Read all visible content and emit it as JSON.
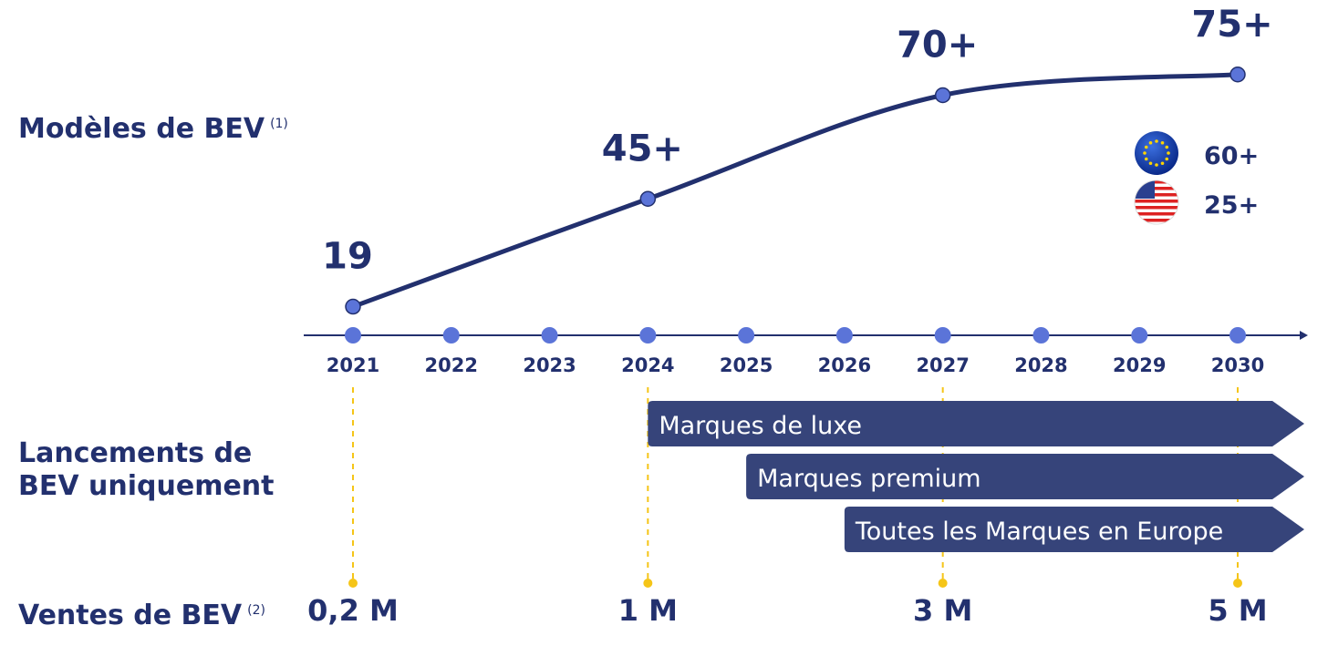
{
  "chart_data": {
    "type": "line",
    "row_labels": [
      "Modèles de BEV",
      "Lancements de BEV uniquement",
      "Ventes de BEV"
    ],
    "notes": [
      "(1)",
      "(2)"
    ],
    "x": [
      2021,
      2024,
      2027,
      2030
    ],
    "values": [
      19,
      45,
      70,
      75
    ],
    "value_labels": [
      "19",
      "45+",
      "70+",
      "75+"
    ],
    "color": "#22306e",
    "marker_color": "#5b74d8",
    "xlim": [
      2021,
      2030
    ],
    "xticks": [
      2021,
      2022,
      2023,
      2024,
      2025,
      2026,
      2027,
      2028,
      2029,
      2030
    ],
    "ylim": [
      0,
      100
    ],
    "regions": {
      "values": [
        60,
        25
      ],
      "value_labels": [
        "60+",
        "25+"
      ]
    },
    "launches": {
      "names": [
        "Marques de luxe",
        "Marques premium",
        "Toutes les Marques en Europe"
      ],
      "start": [
        2024,
        2025,
        2026
      ],
      "color": "#36447a"
    },
    "sales": {
      "x": [
        2021,
        2024,
        2027,
        2030
      ],
      "values": [
        0.2,
        1,
        3,
        5
      ],
      "value_labels": [
        "0,2 M",
        "1 M",
        "3 M",
        "5 M"
      ],
      "guide_color": "#f5c518"
    }
  }
}
